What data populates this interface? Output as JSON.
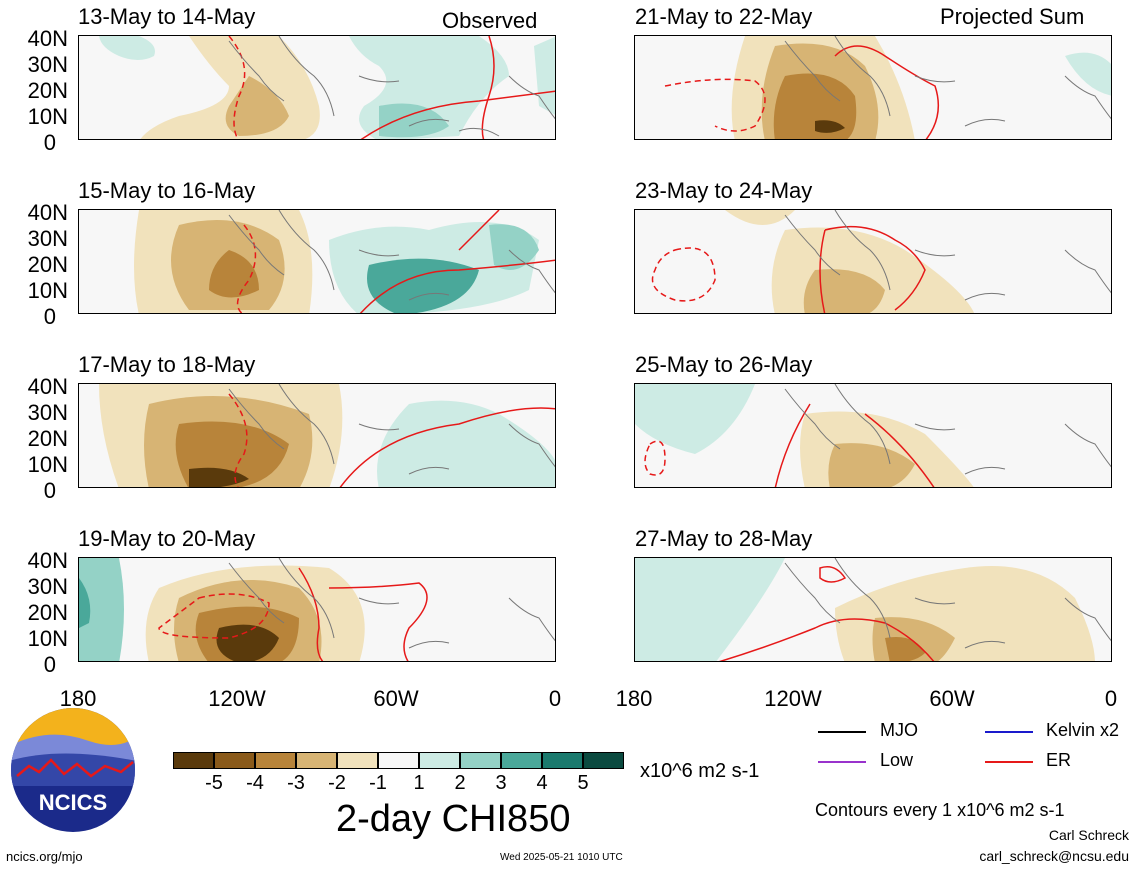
{
  "left_header": "Observed",
  "right_header": "Projected Sum",
  "panels_left": [
    {
      "title": "13-May to 14-May"
    },
    {
      "title": "15-May to 16-May"
    },
    {
      "title": "17-May to 18-May"
    },
    {
      "title": "19-May to 20-May"
    }
  ],
  "panels_right": [
    {
      "title": "21-May to 22-May"
    },
    {
      "title": "23-May to 24-May"
    },
    {
      "title": "25-May to 26-May"
    },
    {
      "title": "27-May to 28-May"
    }
  ],
  "lat_labels": [
    "40N",
    "30N",
    "20N",
    "10N",
    "0"
  ],
  "lon_labels": [
    "180",
    "120W",
    "60W",
    "0"
  ],
  "colorbar": {
    "labels": [
      "-5",
      "-4",
      "-3",
      "-2",
      "-1",
      "1",
      "2",
      "3",
      "4",
      "5"
    ],
    "colors": [
      "#5a3a0c",
      "#8a5a1a",
      "#b8843a",
      "#d7b474",
      "#f1e2bc",
      "#f7f7f7",
      "#cdebe4",
      "#94d2c6",
      "#4aa89a",
      "#1b7a6e",
      "#0b4a40"
    ],
    "units": "x10^6 m2 s-1",
    "title": "2-day CHI850"
  },
  "legend": [
    {
      "label": "MJO",
      "color": "#000000"
    },
    {
      "label": "Kelvin x2",
      "color": "#1a1acc"
    },
    {
      "label": "Low",
      "color": "#9932cc"
    },
    {
      "label": "ER",
      "color": "#e61919"
    }
  ],
  "contour_note": "Contours every 1 x10^6 m2 s-1",
  "author": "Carl Schreck",
  "email": "carl_schreck@ncsu.edu",
  "site": "ncics.org/mjo",
  "timestamp": "Wed 2025-05-21 1010 UTC",
  "logo_text": "NCICS"
}
